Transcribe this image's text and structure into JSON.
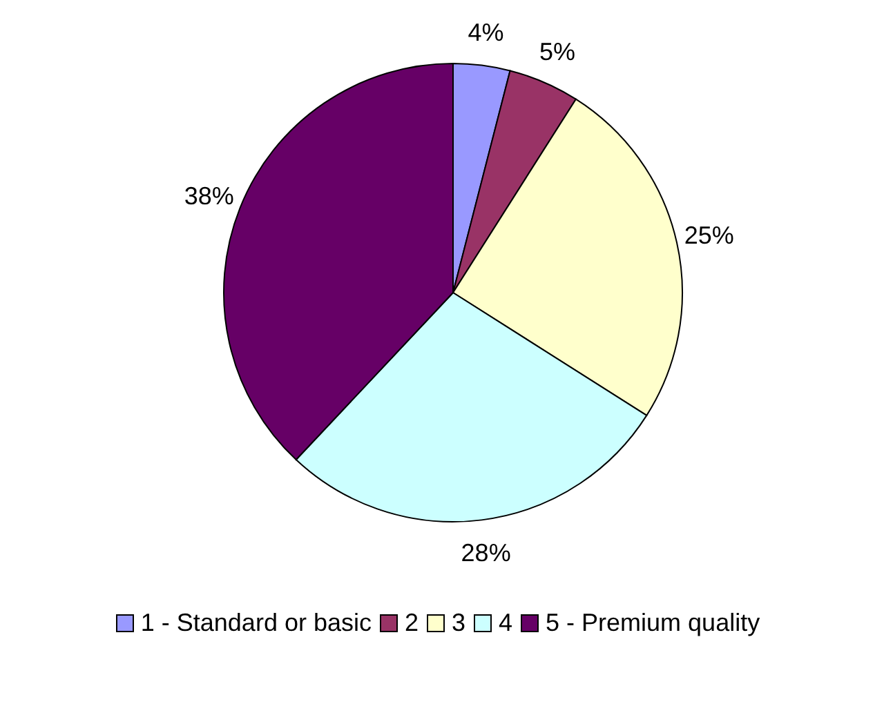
{
  "chart_data": {
    "type": "pie",
    "categories": [
      "1 - Standard or basic",
      "2",
      "3",
      "4",
      "5 - Premium quality"
    ],
    "values": [
      4,
      5,
      25,
      28,
      38
    ],
    "colors": [
      "#9999ff",
      "#993366",
      "#ffffcc",
      "#ccffff",
      "#660066"
    ],
    "value_labels": [
      "4%",
      "5%",
      "25%",
      "28%",
      "38%"
    ],
    "legend": "bottom"
  }
}
